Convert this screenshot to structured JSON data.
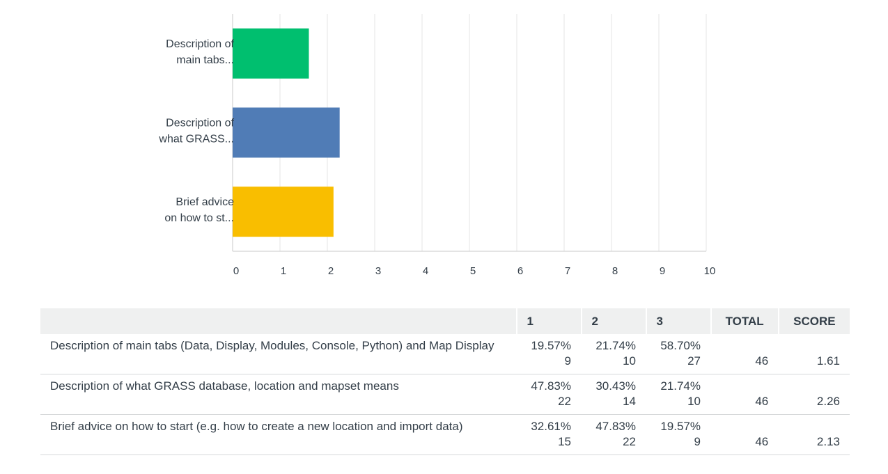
{
  "chart_data": {
    "type": "bar",
    "orientation": "horizontal",
    "categories": [
      "Description of main tabs...",
      "Description of what GRASS...",
      "Brief advice on how to st..."
    ],
    "category_lines": [
      [
        "Description of",
        "main tabs..."
      ],
      [
        "Description of",
        "what GRASS..."
      ],
      [
        "Brief advice",
        "on how to st..."
      ]
    ],
    "values": [
      1.61,
      2.26,
      2.13
    ],
    "colors": [
      "#00bf6f",
      "#507cb6",
      "#f9be00"
    ],
    "xlim": [
      0,
      10
    ],
    "xticks": [
      "0",
      "1",
      "2",
      "3",
      "4",
      "5",
      "6",
      "7",
      "8",
      "9",
      "10"
    ],
    "grid": true
  },
  "table": {
    "headers": [
      "",
      "1",
      "2",
      "3",
      "TOTAL",
      "SCORE"
    ],
    "rows": [
      {
        "question": "Description of main tabs (Data, Display, Modules, Console, Python) and Map Display",
        "c1_pct": "19.57%",
        "c1_n": "9",
        "c2_pct": "21.74%",
        "c2_n": "10",
        "c3_pct": "58.70%",
        "c3_n": "27",
        "total": "46",
        "score": "1.61"
      },
      {
        "question": "Description of what GRASS database, location and mapset means",
        "c1_pct": "47.83%",
        "c1_n": "22",
        "c2_pct": "30.43%",
        "c2_n": "14",
        "c3_pct": "21.74%",
        "c3_n": "10",
        "total": "46",
        "score": "2.26"
      },
      {
        "question": "Brief advice on how to start (e.g. how to create a new location and import data)",
        "c1_pct": "32.61%",
        "c1_n": "15",
        "c2_pct": "47.83%",
        "c2_n": "22",
        "c3_pct": "19.57%",
        "c3_n": "9",
        "total": "46",
        "score": "2.13"
      }
    ]
  }
}
